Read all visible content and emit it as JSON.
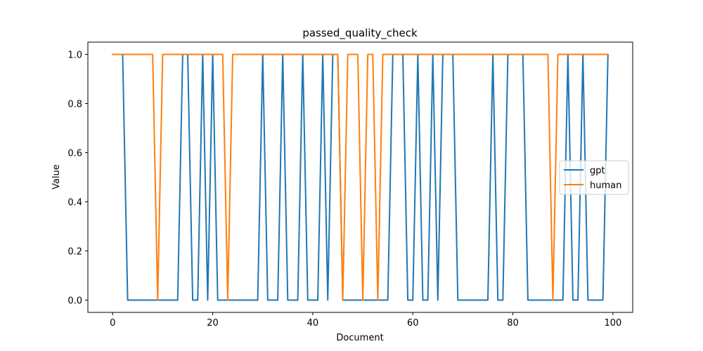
{
  "chart_data": {
    "type": "line",
    "title": "passed_quality_check",
    "xlabel": "Document",
    "ylabel": "Value",
    "xlim": [
      -4.95,
      103.95
    ],
    "ylim": [
      -0.05,
      1.05
    ],
    "xticks": [
      0,
      20,
      40,
      60,
      80,
      100
    ],
    "yticks": [
      0.0,
      0.2,
      0.4,
      0.6,
      0.8,
      1.0
    ],
    "xtick_labels": [
      "0",
      "20",
      "40",
      "60",
      "80",
      "100"
    ],
    "ytick_labels": [
      "0.0",
      "0.2",
      "0.4",
      "0.6",
      "0.8",
      "1.0"
    ],
    "grid": false,
    "legend_position": "center-right",
    "series": [
      {
        "name": "gpt",
        "color": "#1f77b4",
        "values": [
          1,
          1,
          1,
          0,
          0,
          0,
          0,
          0,
          0,
          0,
          0,
          0,
          0,
          0,
          1,
          1,
          0,
          0,
          1,
          0,
          1,
          0,
          0,
          0,
          0,
          0,
          0,
          0,
          0,
          0,
          1,
          0,
          0,
          0,
          1,
          0,
          0,
          0,
          1,
          0,
          0,
          0,
          1,
          0,
          1,
          1,
          0,
          0,
          0,
          0,
          0,
          0,
          0,
          0,
          0,
          0,
          1,
          1,
          1,
          0,
          0,
          1,
          0,
          0,
          1,
          0,
          1,
          1,
          1,
          0,
          0,
          0,
          0,
          0,
          0,
          0,
          1,
          0,
          0,
          1,
          1,
          1,
          1,
          0,
          0,
          0,
          0,
          0,
          0,
          0,
          0,
          1,
          0,
          0,
          1,
          0,
          0,
          0,
          0,
          1
        ]
      },
      {
        "name": "human",
        "color": "#ff7f0e",
        "values": [
          1,
          1,
          1,
          1,
          1,
          1,
          1,
          1,
          1,
          0,
          1,
          1,
          1,
          1,
          1,
          1,
          1,
          1,
          1,
          1,
          1,
          1,
          1,
          0,
          1,
          1,
          1,
          1,
          1,
          1,
          1,
          1,
          1,
          1,
          1,
          1,
          1,
          1,
          1,
          1,
          1,
          1,
          1,
          1,
          1,
          1,
          0,
          1,
          1,
          1,
          0,
          1,
          1,
          0,
          1,
          1,
          1,
          1,
          1,
          1,
          1,
          1,
          1,
          1,
          1,
          1,
          1,
          1,
          1,
          1,
          1,
          1,
          1,
          1,
          1,
          1,
          1,
          1,
          1,
          1,
          1,
          1,
          1,
          1,
          1,
          1,
          1,
          1,
          0,
          1,
          1,
          1,
          1,
          1,
          1,
          1,
          1,
          1,
          1,
          1
        ]
      }
    ]
  }
}
